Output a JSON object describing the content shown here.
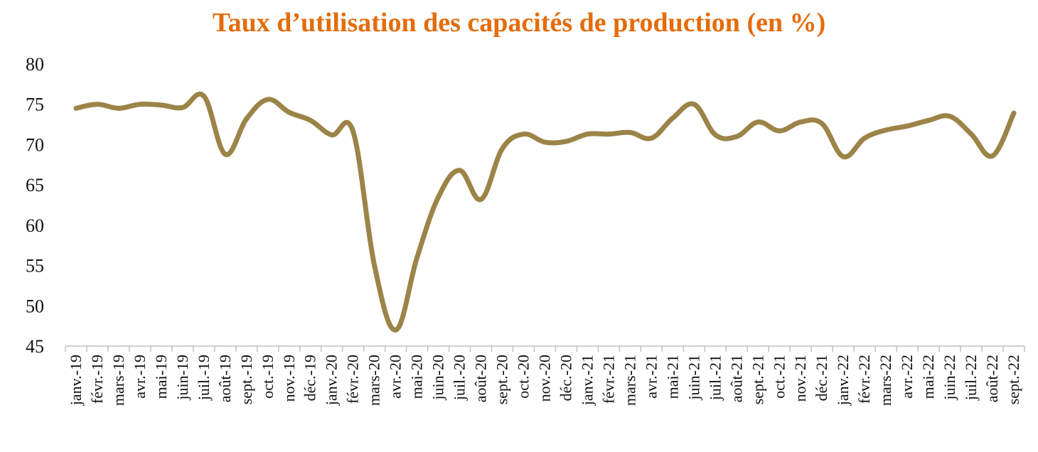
{
  "chart_data": {
    "type": "line",
    "title": "Taux d’utilisation des capacités de production (en %)",
    "xlabel": "",
    "ylabel": "",
    "ylim": [
      45,
      80
    ],
    "yticks": [
      45,
      50,
      55,
      60,
      65,
      70,
      75,
      80
    ],
    "grid": false,
    "legend": "none",
    "line_color": "#9C8448",
    "title_color": "#E46C0A",
    "categories": [
      "janv.-19",
      "févr.-19",
      "mars-19",
      "avr.-19",
      "mai-19",
      "juin-19",
      "juil.-19",
      "août-19",
      "sept.-19",
      "oct.-19",
      "nov.-19",
      "déc.-19",
      "janv.-20",
      "févr.-20",
      "mars-20",
      "avr.-20",
      "mai-20",
      "juin-20",
      "juil.-20",
      "août-20",
      "sept.-20",
      "oct.-20",
      "nov.-20",
      "déc.-20",
      "janv.-21",
      "févr.-21",
      "mars-21",
      "avr.-21",
      "mai-21",
      "juin-21",
      "juil.-21",
      "août-21",
      "sept.-21",
      "oct.-21",
      "nov.-21",
      "déc.-21",
      "janv.-22",
      "févr.-22",
      "mars-22",
      "avr.-22",
      "mai-22",
      "juin-22",
      "juil.-22",
      "août-22",
      "sept.-22"
    ],
    "series": [
      {
        "values": [
          74.5,
          75.0,
          74.5,
          75.0,
          74.9,
          74.6,
          76.0,
          68.8,
          73.2,
          75.6,
          74.0,
          73.0,
          71.2,
          71.6,
          55.0,
          47.0,
          56.0,
          63.5,
          66.8,
          63.2,
          69.5,
          71.3,
          70.3,
          70.4,
          71.3,
          71.3,
          71.5,
          70.8,
          73.3,
          75.0,
          71.2,
          71.0,
          72.8,
          71.7,
          72.8,
          72.6,
          68.5,
          70.8,
          71.8,
          72.3,
          73.0,
          73.5,
          71.3,
          68.6,
          73.9
        ]
      }
    ]
  }
}
